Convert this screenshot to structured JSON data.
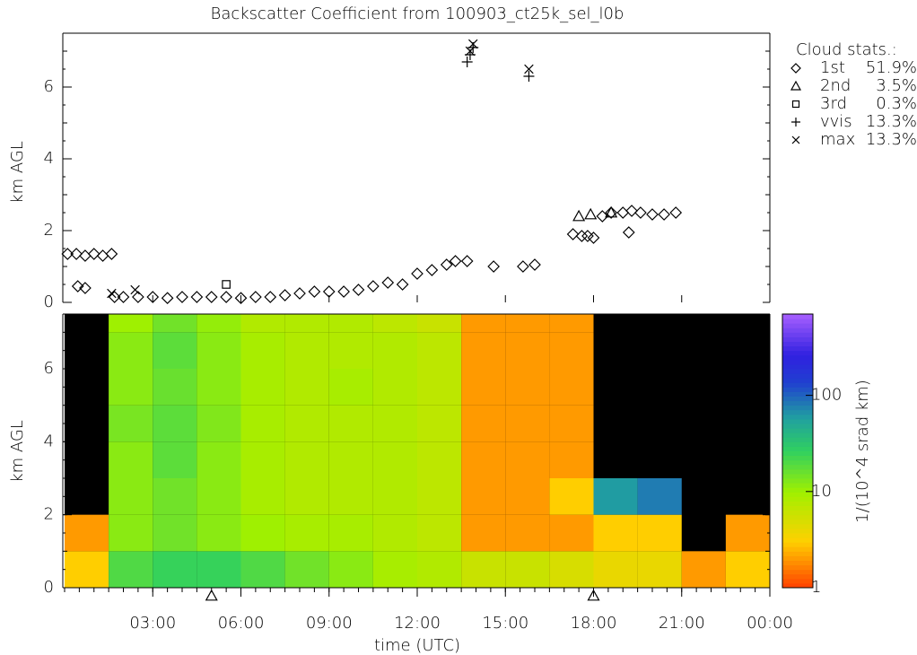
{
  "chart_data": [
    {
      "type": "scatter",
      "title": "Backscatter Coefficient from 100903_ct25k_sel_l0b",
      "ylabel": "km AGL",
      "legend_title": "Cloud stats.:",
      "xlim": [
        0,
        24
      ],
      "ylim": [
        0,
        7.5
      ],
      "yticks": [
        0,
        2,
        4,
        6
      ],
      "series": [
        {
          "name": "1st",
          "stat_label": "51.9%",
          "marker": "diamond",
          "color": "#000000",
          "x": [
            0.1,
            0.4,
            0.7,
            1.0,
            1.3,
            1.6,
            0.45,
            0.7,
            1.7,
            2.0,
            2.5,
            3.0,
            3.5,
            4.0,
            4.5,
            5.0,
            5.5,
            6.0,
            6.5,
            7.0,
            7.5,
            8.0,
            8.5,
            9.0,
            9.5,
            10.0,
            10.5,
            11.0,
            11.5,
            12.0,
            12.5,
            13.0,
            13.3,
            13.7,
            14.6,
            15.6,
            16.0,
            17.3,
            17.6,
            18.0,
            18.3,
            18.6,
            19.0,
            19.3,
            19.6,
            20.0,
            20.4,
            20.8,
            17.8,
            19.2
          ],
          "y": [
            1.35,
            1.35,
            1.3,
            1.35,
            1.3,
            1.35,
            0.45,
            0.4,
            0.15,
            0.15,
            0.15,
            0.15,
            0.12,
            0.15,
            0.15,
            0.15,
            0.15,
            0.12,
            0.15,
            0.15,
            0.2,
            0.25,
            0.3,
            0.3,
            0.3,
            0.35,
            0.45,
            0.55,
            0.5,
            0.8,
            0.9,
            1.05,
            1.15,
            1.15,
            1.0,
            1.0,
            1.05,
            1.9,
            1.85,
            1.8,
            2.4,
            2.5,
            2.5,
            2.55,
            2.5,
            2.45,
            2.45,
            2.5,
            1.85,
            1.95
          ]
        },
        {
          "name": "2nd",
          "stat_label": "3.5%",
          "marker": "triangle",
          "color": "#000000",
          "x": [
            17.5,
            17.9,
            18.6
          ],
          "y": [
            2.4,
            2.45,
            2.5
          ]
        },
        {
          "name": "3rd",
          "stat_label": "0.3%",
          "marker": "square",
          "color": "#000000",
          "x": [
            5.5
          ],
          "y": [
            0.5
          ]
        },
        {
          "name": "vvis",
          "stat_label": "13.3%",
          "marker": "plus",
          "color": "#000000",
          "x": [
            13.7,
            13.8,
            13.9,
            15.8
          ],
          "y": [
            6.7,
            6.9,
            7.1,
            6.3
          ]
        },
        {
          "name": "max",
          "stat_label": "13.3%",
          "marker": "x",
          "color": "#000000",
          "x": [
            13.8,
            13.9,
            15.8,
            1.6,
            2.4
          ],
          "y": [
            7.0,
            7.2,
            6.5,
            0.25,
            0.35
          ]
        }
      ]
    },
    {
      "type": "heatmap",
      "ylabel": "km AGL",
      "xlabel": "time (UTC)",
      "colorbar_label": "1/(10^4 srad km)",
      "xlim": [
        0,
        24
      ],
      "ylim": [
        0,
        7.5
      ],
      "yticks": [
        0,
        2,
        4,
        6
      ],
      "xticks": [
        {
          "value": 3,
          "label": "03:00"
        },
        {
          "value": 6,
          "label": "06:00"
        },
        {
          "value": 9,
          "label": "09:00"
        },
        {
          "value": 12,
          "label": "12:00"
        },
        {
          "value": 15,
          "label": "15:00"
        },
        {
          "value": 18,
          "label": "18:00"
        },
        {
          "value": 21,
          "label": "21:00"
        },
        {
          "value": 24,
          "label": "00:00"
        }
      ],
      "clim": [
        1,
        700
      ],
      "cticks": [
        1,
        10,
        100
      ],
      "log_color": true,
      "x_edges": [
        0,
        1.5,
        3,
        4.5,
        6,
        7.5,
        9,
        10.5,
        12,
        13.5,
        15,
        16.5,
        18,
        19.5,
        21,
        22.5,
        24
      ],
      "y_edges": [
        0,
        1,
        2,
        3,
        4,
        5,
        6,
        7,
        7.5
      ],
      "z": [
        [
          3,
          20,
          25,
          25,
          20,
          15,
          12,
          9,
          8,
          6,
          6,
          5,
          4,
          4,
          2,
          3
        ],
        [
          2,
          12,
          15,
          12,
          10,
          9,
          9,
          8,
          7,
          2,
          2,
          2,
          3,
          3,
          null,
          2
        ],
        [
          null,
          12,
          15,
          12,
          9,
          8,
          8,
          8,
          7,
          2,
          2,
          3,
          60,
          80,
          null,
          null
        ],
        [
          null,
          12,
          18,
          12,
          9,
          8,
          8,
          8,
          7,
          2,
          2,
          2,
          null,
          null,
          null,
          null
        ],
        [
          null,
          14,
          18,
          13,
          9,
          8,
          8,
          8,
          7,
          2,
          2,
          2,
          null,
          null,
          null,
          null
        ],
        [
          null,
          12,
          16,
          12,
          9,
          8,
          9,
          8,
          7,
          2,
          2,
          2,
          null,
          null,
          null,
          null
        ],
        [
          null,
          12,
          18,
          12,
          9,
          8,
          8,
          8,
          7,
          2,
          2,
          2,
          null,
          null,
          null,
          null
        ],
        [
          null,
          10,
          15,
          11,
          8,
          8,
          8,
          7,
          6,
          2,
          2,
          2,
          null,
          null,
          null,
          null
        ]
      ],
      "markers_x": [
        5.0,
        18.0
      ]
    }
  ]
}
